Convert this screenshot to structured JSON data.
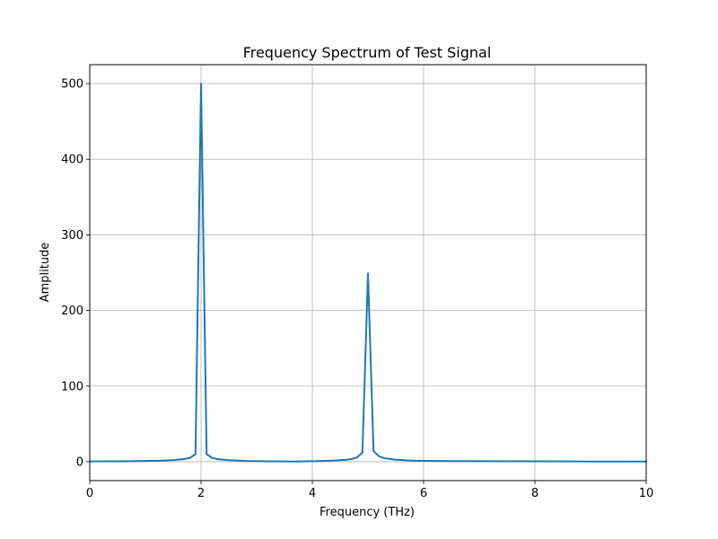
{
  "chart_data": {
    "type": "line",
    "title": "Frequency Spectrum of Test Signal",
    "xlabel": "Frequency (THz)",
    "ylabel": "Amplitude",
    "xlim": [
      0,
      10
    ],
    "ylim": [
      -25,
      525
    ],
    "grid": true,
    "x_ticks": [
      0,
      2,
      4,
      6,
      8,
      10
    ],
    "x_tick_labels": [
      "0",
      "2",
      "4",
      "6",
      "8",
      "10"
    ],
    "y_ticks": [
      0,
      100,
      200,
      300,
      400,
      500
    ],
    "y_tick_labels": [
      "0",
      "100",
      "200",
      "300",
      "400",
      "500"
    ],
    "series": [
      {
        "name": "spectrum",
        "color": "#1f77b4",
        "x": [
          0,
          0.5,
          1.0,
          1.3,
          1.5,
          1.7,
          1.8,
          1.9,
          2.0,
          2.1,
          2.2,
          2.3,
          2.5,
          2.8,
          3.2,
          3.7,
          4.1,
          4.4,
          4.6,
          4.7,
          4.8,
          4.9,
          5.0,
          5.1,
          5.2,
          5.3,
          5.5,
          5.8,
          6.2,
          7.0,
          8.0,
          9.0,
          10.0
        ],
        "y": [
          0.4,
          0.6,
          1.0,
          1.5,
          2.2,
          3.5,
          5.0,
          10,
          500,
          10,
          5.0,
          3.3,
          2.0,
          1.0,
          0.5,
          0.2,
          0.8,
          1.6,
          2.5,
          3.5,
          5.5,
          12,
          249,
          14,
          7.0,
          4.5,
          2.6,
          1.5,
          1.0,
          0.7,
          0.5,
          0.3,
          0.2
        ]
      }
    ]
  }
}
